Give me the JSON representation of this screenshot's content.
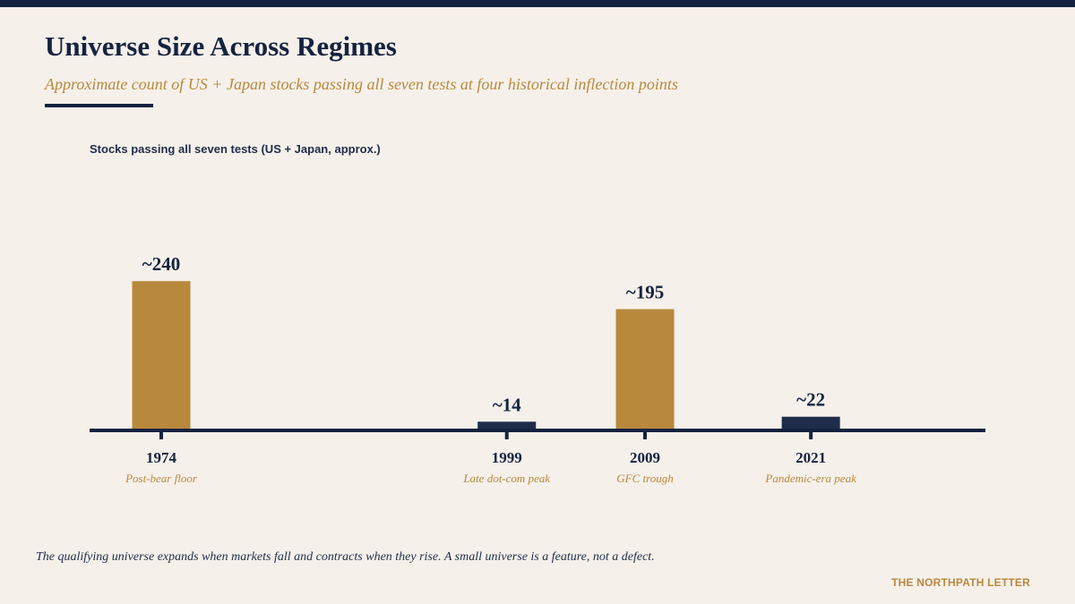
{
  "header": {
    "title": "Universe Size Across Regimes",
    "subtitle": "Approximate count of US + Japan stocks passing all seven tests at four historical inflection points"
  },
  "chart_data": {
    "type": "bar",
    "title": "Stocks passing all seven tests  (US + Japan, approx.)",
    "x": [
      1974,
      1999,
      2009,
      2021
    ],
    "categories": [
      "1974",
      "1999",
      "2009",
      "2021"
    ],
    "category_notes": [
      "Post-bear floor",
      "Late dot-com peak",
      "GFC trough",
      "Pandemic-era peak"
    ],
    "values": [
      240,
      14,
      195,
      22
    ],
    "data_labels": [
      "~240",
      "~14",
      "~195",
      "~22"
    ],
    "bar_colors": [
      "#b8893c",
      "#1e2d4a",
      "#b8893c",
      "#1e2d4a"
    ],
    "grid": false,
    "legend": "none"
  },
  "footer": {
    "note": "The qualifying universe expands when markets fall and contracts when they rise. A small universe is a feature, not a defect.",
    "brand": "THE NORTHPATH LETTER"
  },
  "colors": {
    "navy": "#14233f",
    "gold": "#b8893c",
    "background": "#f5f0ea"
  }
}
